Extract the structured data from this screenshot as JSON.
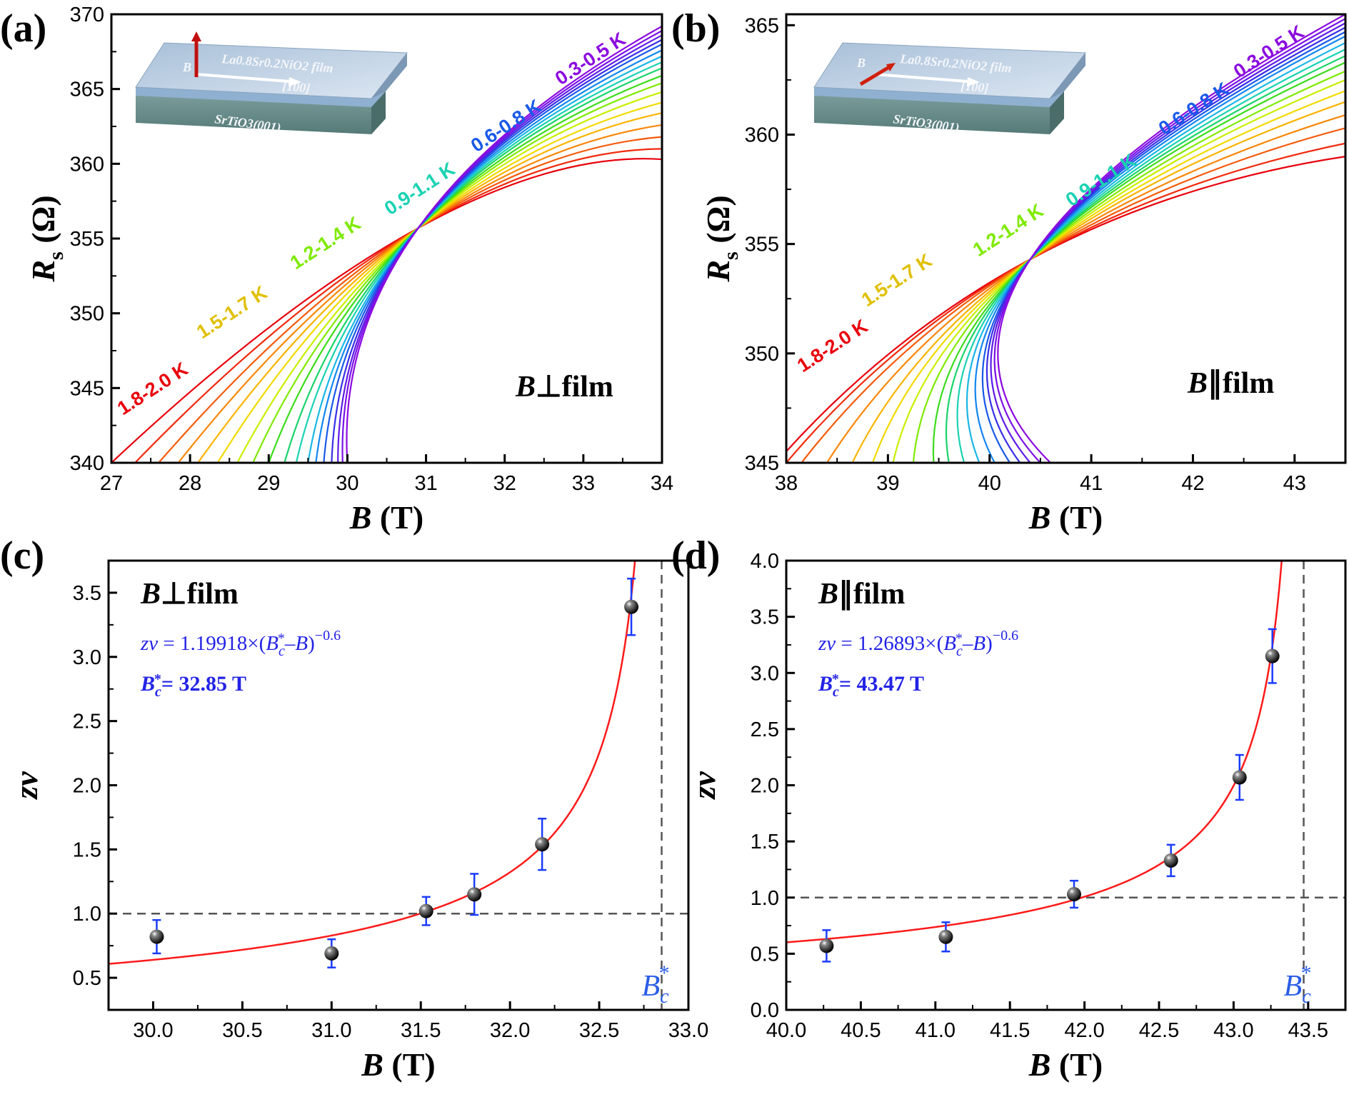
{
  "colors": {
    "fit": "#ff1a1a",
    "errorbar": "#1a3cff",
    "annotation": "#2323e6",
    "dashed": "#555555",
    "rainbow": [
      "#e8000c",
      "#f02a0c",
      "#f55a0a",
      "#f9870a",
      "#fbb300",
      "#f2da00",
      "#c8ef00",
      "#7fea00",
      "#3cdc1c",
      "#19d46a",
      "#1ad2b3",
      "#1ab6e6",
      "#1487f0",
      "#1a5ae8",
      "#3a2fe6",
      "#5f1de6",
      "#7b12e6",
      "#8c0be0"
    ]
  },
  "inset": {
    "film": "La0.8Sr0.2NiO2 film",
    "substrate": "SrTiO3(001)",
    "direction": "[100]",
    "field": "B"
  },
  "chart_data": [
    {
      "panel": "(a)",
      "type": "line",
      "xlabel_var": "B",
      "xlabel_unit": "(T)",
      "ylabel_var": "R",
      "ylabel_sub": "s",
      "ylabel_unit": "(Ω)",
      "xlim": [
        27,
        34
      ],
      "ylim": [
        340,
        370
      ],
      "xticks": [
        27,
        28,
        29,
        30,
        31,
        32,
        33,
        34
      ],
      "yticks": [
        340,
        345,
        350,
        355,
        360,
        365,
        370
      ],
      "condition": "B⊥film",
      "condition_var": "B",
      "condition_rest": "⊥film",
      "band_labels": [
        "1.8-2.0 K",
        "1.5-1.7 K",
        "1.2-1.4 K",
        "0.9-1.1 K",
        "0.6-0.8 K",
        "0.3-0.5 K"
      ],
      "crossing": [
        30.9,
        355.7
      ],
      "temperatures_K": [
        2.0,
        1.9,
        1.8,
        1.7,
        1.6,
        1.5,
        1.4,
        1.3,
        1.2,
        1.1,
        1.0,
        0.9,
        0.8,
        0.7,
        0.6,
        0.5,
        0.4,
        0.3
      ],
      "curve_ends": {
        "right_at_34": [
          360.3,
          361.0,
          361.8,
          362.6,
          363.4,
          364.1,
          364.8,
          365.4,
          365.9,
          366.4,
          366.8,
          367.2,
          367.6,
          368.0,
          368.3,
          368.6,
          368.9,
          369.2
        ],
        "left_at_340": [
          27.0,
          27.3,
          27.6,
          27.85,
          28.1,
          28.35,
          28.6,
          28.8,
          29.0,
          29.2,
          29.35,
          29.5,
          29.6,
          29.7,
          29.8,
          29.88,
          29.94,
          30.0
        ]
      }
    },
    {
      "panel": "(b)",
      "type": "line",
      "xlabel_var": "B",
      "xlabel_unit": "(T)",
      "ylabel_var": "R",
      "ylabel_sub": "s",
      "ylabel_unit": "(Ω)",
      "xlim": [
        38,
        43.5
      ],
      "ylim": [
        345,
        365.5
      ],
      "xticks": [
        38,
        39,
        40,
        41,
        42,
        43
      ],
      "yticks": [
        345,
        350,
        355,
        360,
        365
      ],
      "condition": "B∥film",
      "condition_var": "B",
      "condition_rest": "∥film",
      "band_labels": [
        "1.8-2.0 K",
        "1.5-1.7 K",
        "1.2-1.4 K",
        "0.9-1.1 K",
        "0.6-0.8 K",
        "0.3-0.5 K"
      ],
      "crossing": [
        40.4,
        354.3
      ],
      "temperatures_K": [
        2.0,
        1.9,
        1.8,
        1.7,
        1.6,
        1.5,
        1.4,
        1.3,
        1.2,
        1.1,
        1.0,
        0.9,
        0.8,
        0.7,
        0.6,
        0.5,
        0.4,
        0.3
      ],
      "curve_ends": {
        "right_at_43.5": [
          359.0,
          359.6,
          360.3,
          360.9,
          361.5,
          362.0,
          362.5,
          362.9,
          363.3,
          363.6,
          363.9,
          364.2,
          364.5,
          364.7,
          364.9,
          365.1,
          365.3,
          365.5
        ],
        "left_at_345": [
          37.9,
          38.0,
          38.15,
          38.4,
          38.65,
          38.85,
          39.05,
          39.25,
          39.45,
          39.6,
          39.75,
          39.9,
          40.05,
          40.2,
          40.3,
          40.4,
          40.5,
          40.6
        ]
      }
    },
    {
      "panel": "(c)",
      "type": "scatter",
      "xlabel_var": "B",
      "xlabel_unit": "(T)",
      "ylabel": "zν",
      "xlim": [
        29.75,
        33.0
      ],
      "ylim": [
        0.25,
        3.75
      ],
      "xticks": [
        30.0,
        30.5,
        31.0,
        31.5,
        32.0,
        32.5,
        33.0
      ],
      "yticks": [
        0.5,
        1.0,
        1.5,
        2.0,
        2.5,
        3.0,
        3.5
      ],
      "condition": "B⊥film",
      "condition_var": "B",
      "condition_rest": "⊥film",
      "fit_formula": "zν = 1.19918×(Bc*–B)−0.6",
      "fit_formula_parts": [
        "zν",
        " = 1.19918×(",
        "B",
        "c",
        "*",
        "–",
        "B",
        ")",
        "−0.6"
      ],
      "Bc_label": "Bc*= 32.85 T",
      "Bc_value_text": "= 32.85 T",
      "Bc_corner": "Bc*",
      "fit": {
        "A": 1.19918,
        "Bc": 32.85,
        "exponent": -0.6
      },
      "hline": 1.0,
      "vline": 32.85,
      "points": [
        {
          "x": 30.02,
          "y": 0.82,
          "err": 0.13
        },
        {
          "x": 31.0,
          "y": 0.69,
          "err": 0.11
        },
        {
          "x": 31.53,
          "y": 1.02,
          "err": 0.11
        },
        {
          "x": 31.8,
          "y": 1.15,
          "err": 0.16
        },
        {
          "x": 32.18,
          "y": 1.54,
          "err": 0.2
        },
        {
          "x": 32.68,
          "y": 3.39,
          "err": 0.22
        }
      ]
    },
    {
      "panel": "(d)",
      "type": "scatter",
      "xlabel_var": "B",
      "xlabel_unit": "(T)",
      "ylabel": "zν",
      "xlim": [
        40.0,
        43.75
      ],
      "ylim": [
        0.0,
        4.0
      ],
      "xticks": [
        40.0,
        40.5,
        41.0,
        41.5,
        42.0,
        42.5,
        43.0,
        43.5
      ],
      "yticks": [
        0.0,
        0.5,
        1.0,
        1.5,
        2.0,
        2.5,
        3.0,
        3.5,
        4.0
      ],
      "condition": "B∥film",
      "condition_var": "B",
      "condition_rest": "∥film",
      "fit_formula": "zν = 1.26893×(Bc*–B)−0.6",
      "fit_formula_parts": [
        "zν",
        " = 1.26893×(",
        "B",
        "c",
        "*",
        "–",
        "B",
        ")",
        "−0.6"
      ],
      "Bc_label": "Bc*= 43.47 T",
      "Bc_value_text": "= 43.47 T",
      "Bc_corner": "Bc*",
      "fit": {
        "A": 1.26893,
        "Bc": 43.47,
        "exponent": -0.6
      },
      "hline": 1.0,
      "vline": 43.47,
      "points": [
        {
          "x": 40.27,
          "y": 0.57,
          "err": 0.14
        },
        {
          "x": 41.07,
          "y": 0.65,
          "err": 0.13
        },
        {
          "x": 41.93,
          "y": 1.03,
          "err": 0.12
        },
        {
          "x": 42.58,
          "y": 1.33,
          "err": 0.14
        },
        {
          "x": 43.04,
          "y": 2.07,
          "err": 0.2
        },
        {
          "x": 43.26,
          "y": 3.15,
          "err": 0.24
        }
      ]
    }
  ]
}
